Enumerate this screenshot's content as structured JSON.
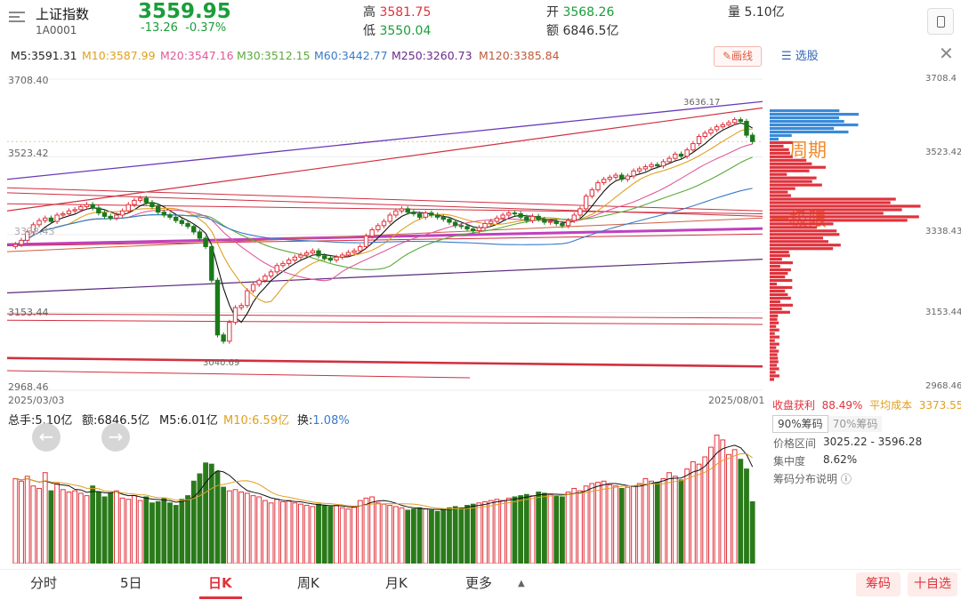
{
  "header": {
    "name": "上证指数",
    "code": "1A0001",
    "price": "3559.95",
    "change": "-13.26",
    "change_pct": "-0.37%",
    "high_label": "高",
    "high": "3581.75",
    "low_label": "低",
    "low": "3550.04",
    "open_label": "开",
    "open": "3568.26",
    "amount_label": "额",
    "amount": "6846.5亿",
    "volume_label": "量",
    "volume": "5.10亿"
  },
  "ma_legend": {
    "m5": "M5:3591.31",
    "m10": "M10:3587.99",
    "m20": "M20:3547.16",
    "m30": "M30:3512.15",
    "m60": "M60:3442.77",
    "m250": "M250:3260.73",
    "m120": "M120:3385.84",
    "draw_btn": "画线"
  },
  "colors": {
    "up": "#e0323c",
    "down": "#1a7a1a",
    "m5": "#111111",
    "m10": "#e0a020",
    "m20": "#e05a9a",
    "m30": "#5aaa3a",
    "m60": "#3a7ac8",
    "m250": "#6a2a8a",
    "m120": "#c05a3a"
  },
  "axis": {
    "top": "3708.40",
    "mid": "3523.42",
    "low": "3153.44",
    "bottom": "2968.46",
    "left_hidden": "3338.43",
    "date_start": "2025/03/03",
    "date_end": "2025/08/01",
    "peak_label": "3636.17",
    "trough_label": "3040.69"
  },
  "chip_axis": {
    "top": "3708.4",
    "a": "3523.42",
    "b": "3338.43",
    "c": "3153.44",
    "bottom": "2968.46"
  },
  "annotations": {
    "a1": "一周期",
    "a2": "一极限"
  },
  "volume_legend": {
    "total": "总手:5.10亿",
    "amount": "额:6846.5亿",
    "m5": "M5:6.01亿",
    "m10": "M10:6.59亿",
    "turnover_label": "换:",
    "turnover": "1.08%"
  },
  "chip_panel": {
    "select_label": "选股",
    "profit_label": "收盘获利",
    "profit": "88.49%",
    "avgcost_label": "平均成本",
    "avgcost": "3373.55",
    "tab90": "90%筹码",
    "tab70": "70%筹码",
    "range_label": "价格区间",
    "range": "3025.22 - 3596.28",
    "conc_label": "集中度",
    "conc": "8.62%",
    "help": "筹码分布说明"
  },
  "tabs": [
    "分时",
    "5日",
    "日K",
    "周K",
    "月K",
    "更多"
  ],
  "buttons": {
    "chips": "筹码",
    "add": "十自选"
  },
  "chart_data": {
    "type": "candlestick",
    "x_start": "2025/03/03",
    "x_end": "2025/08/01",
    "ylim": [
      2968.46,
      3708.4
    ],
    "close": [
      3315,
      3325,
      3345,
      3362,
      3372,
      3378,
      3370,
      3385,
      3388,
      3395,
      3398,
      3405,
      3410,
      3402,
      3390,
      3382,
      3378,
      3385,
      3395,
      3410,
      3420,
      3425,
      3415,
      3405,
      3392,
      3385,
      3380,
      3372,
      3365,
      3358,
      3345,
      3330,
      3310,
      3230,
      3100,
      3085,
      3130,
      3165,
      3170,
      3205,
      3220,
      3230,
      3240,
      3250,
      3265,
      3270,
      3278,
      3285,
      3290,
      3295,
      3300,
      3288,
      3282,
      3278,
      3285,
      3290,
      3296,
      3300,
      3310,
      3335,
      3350,
      3360,
      3370,
      3385,
      3395,
      3400,
      3392,
      3388,
      3380,
      3390,
      3385,
      3380,
      3375,
      3368,
      3360,
      3358,
      3352,
      3348,
      3355,
      3365,
      3370,
      3378,
      3385,
      3390,
      3388,
      3380,
      3372,
      3382,
      3375,
      3368,
      3370,
      3365,
      3360,
      3372,
      3385,
      3400,
      3430,
      3445,
      3462,
      3470,
      3475,
      3480,
      3470,
      3478,
      3490,
      3495,
      3500,
      3505,
      3502,
      3512,
      3520,
      3530,
      3525,
      3540,
      3555,
      3572,
      3580,
      3588,
      3595,
      3600,
      3605,
      3612,
      3608,
      3575,
      3559.95
    ],
    "volume": [
      7.0,
      6.8,
      7.2,
      6.4,
      6.2,
      7.5,
      6.0,
      6.6,
      6.1,
      5.9,
      6.0,
      5.8,
      5.6,
      6.4,
      5.9,
      5.5,
      5.8,
      6.0,
      5.4,
      5.3,
      5.6,
      5.2,
      5.5,
      5.0,
      5.1,
      5.4,
      5.0,
      4.8,
      5.3,
      5.6,
      6.8,
      7.4,
      8.3,
      8.2,
      7.6,
      6.3,
      6.0,
      6.1,
      5.9,
      5.8,
      5.6,
      5.5,
      5.2,
      5.0,
      5.3,
      5.1,
      5.2,
      5.0,
      4.9,
      4.8,
      4.7,
      4.9,
      4.8,
      4.7,
      4.8,
      4.6,
      4.5,
      4.7,
      5.2,
      5.4,
      5.5,
      5.0,
      4.9,
      4.8,
      4.7,
      4.6,
      4.4,
      4.5,
      4.6,
      4.5,
      4.4,
      4.3,
      4.5,
      4.6,
      4.7,
      4.6,
      4.8,
      4.9,
      5.0,
      5.1,
      5.2,
      5.3,
      5.2,
      5.4,
      5.5,
      5.6,
      5.7,
      5.6,
      5.9,
      5.8,
      5.7,
      5.6,
      5.5,
      5.9,
      6.2,
      6.0,
      6.4,
      6.6,
      6.7,
      6.8,
      6.5,
      6.4,
      6.2,
      6.3,
      6.4,
      6.6,
      7.0,
      6.8,
      6.7,
      7.0,
      7.5,
      7.2,
      6.9,
      7.8,
      8.4,
      8.2,
      8.8,
      9.6,
      10.6,
      10.2,
      9.0,
      9.4,
      8.6,
      7.8,
      5.1
    ],
    "series": [
      {
        "name": "M5",
        "last": 3591.31
      },
      {
        "name": "M10",
        "last": 3587.99
      },
      {
        "name": "M20",
        "last": 3547.16
      },
      {
        "name": "M30",
        "last": 3512.15
      },
      {
        "name": "M60",
        "last": 3442.77
      },
      {
        "name": "M250",
        "last": 3260.73
      },
      {
        "name": "M120",
        "last": 3385.84
      }
    ]
  }
}
